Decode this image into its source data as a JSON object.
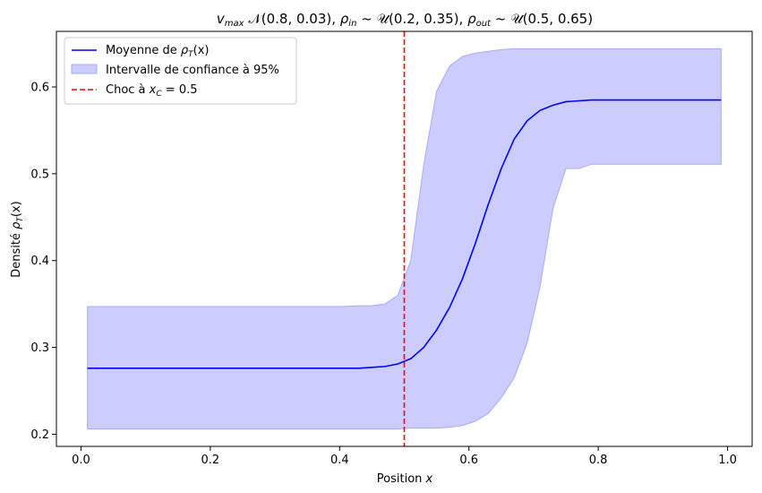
{
  "chart_data": {
    "type": "line",
    "title": "v_max 𝒩(0.8, 0.03), ρ_in ~ 𝒰(0.2, 0.35), ρ_out ~ 𝒰(0.5, 0.65)",
    "title_parts": {
      "t1": "v",
      "t1sub": "max",
      "t2": " 𝒩(0.8, 0.03), ",
      "t3": "ρ",
      "t3sub": "in",
      "t4": " ~ 𝒰(0.2, 0.35), ",
      "t5": "ρ",
      "t5sub": "out",
      "t6": " ~ 𝒰(0.5, 0.65)"
    },
    "xlabel": "Position x",
    "xlabel_parts": {
      "a": "Position ",
      "b": "x"
    },
    "ylabel": "Densité ρT(x)",
    "ylabel_parts": {
      "a": "Densité ",
      "b": "ρ",
      "bsub": "T",
      "c": "(x)"
    },
    "xlim": [
      -0.038,
      1.038
    ],
    "ylim": [
      0.186,
      0.664
    ],
    "xticks": [
      0.0,
      0.2,
      0.4,
      0.6,
      0.8,
      1.0
    ],
    "xtick_labels": [
      "0.0",
      "0.2",
      "0.4",
      "0.6",
      "0.8",
      "1.0"
    ],
    "yticks": [
      0.2,
      0.3,
      0.4,
      0.5,
      0.6
    ],
    "ytick_labels": [
      "0.2",
      "0.3",
      "0.4",
      "0.5",
      "0.6"
    ],
    "grid": false,
    "legend_position": "top-left",
    "colors": {
      "mean": "#0000ff",
      "band_fill": "#ccccff",
      "band_edge": "#aaaaff",
      "shock": "#ff0000"
    },
    "series": [
      {
        "name": "Moyenne de ρT(x)",
        "legend_parts": {
          "a": "Moyenne de ",
          "b": "ρ",
          "bsub": "T",
          "c": "(x)"
        },
        "x": [
          0.01,
          0.1,
          0.2,
          0.3,
          0.4,
          0.43,
          0.45,
          0.47,
          0.49,
          0.51,
          0.53,
          0.55,
          0.57,
          0.59,
          0.61,
          0.63,
          0.65,
          0.67,
          0.69,
          0.71,
          0.73,
          0.75,
          0.77,
          0.79,
          0.85,
          0.9,
          0.99
        ],
        "y": [
          0.276,
          0.276,
          0.276,
          0.276,
          0.276,
          0.276,
          0.277,
          0.278,
          0.281,
          0.287,
          0.3,
          0.32,
          0.346,
          0.379,
          0.42,
          0.465,
          0.506,
          0.54,
          0.561,
          0.573,
          0.579,
          0.583,
          0.584,
          0.585,
          0.585,
          0.585,
          0.585
        ]
      },
      {
        "name": "Intervalle de confiance à 95%",
        "type": "band",
        "x": [
          0.01,
          0.1,
          0.2,
          0.3,
          0.4,
          0.43,
          0.45,
          0.47,
          0.49,
          0.51,
          0.53,
          0.55,
          0.57,
          0.59,
          0.61,
          0.63,
          0.65,
          0.67,
          0.69,
          0.71,
          0.73,
          0.75,
          0.77,
          0.79,
          0.85,
          0.9,
          0.99
        ],
        "upper": [
          0.347,
          0.347,
          0.347,
          0.347,
          0.347,
          0.348,
          0.348,
          0.35,
          0.36,
          0.4,
          0.51,
          0.595,
          0.624,
          0.635,
          0.639,
          0.641,
          0.643,
          0.644,
          0.644,
          0.644,
          0.644,
          0.644,
          0.644,
          0.644,
          0.644,
          0.644,
          0.644
        ],
        "lower": [
          0.206,
          0.206,
          0.206,
          0.206,
          0.206,
          0.206,
          0.206,
          0.206,
          0.206,
          0.207,
          0.207,
          0.207,
          0.208,
          0.21,
          0.215,
          0.224,
          0.242,
          0.265,
          0.305,
          0.37,
          0.46,
          0.506,
          0.506,
          0.511,
          0.511,
          0.511,
          0.511
        ]
      },
      {
        "name": "Choc à xC = 0.5",
        "type": "vline",
        "x": 0.5,
        "legend_parts": {
          "a": "Choc à ",
          "b": "x",
          "bsub": "C",
          "c": " = 0.5"
        }
      }
    ]
  }
}
